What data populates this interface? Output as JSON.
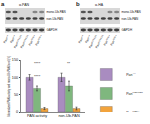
{
  "blots": [
    {
      "label": "a",
      "antibody": "α-PAN",
      "bands": [
        "mono-Ub-PAN",
        "non-Ub-PAN"
      ],
      "loading": "GAPDH",
      "lanes": [
        {
          "base": "Pan",
          "sup": "+/+"
        },
        {
          "base": "Pan",
          "sup": "K2R/K2R"
        },
        {
          "base": "Pan",
          "sup": "K2R/+"
        }
      ]
    },
    {
      "label": "b",
      "antibody": "α-HA",
      "bands": [
        "mono-Ub-PAN",
        "non-Ub-PAN"
      ],
      "loading": "GAPDH",
      "lanes": [
        {
          "base": "Pan",
          "sup": "+/+"
        },
        {
          "base": "Pan",
          "sup": "K2R/K2R"
        },
        {
          "base": "Pan",
          "sup": "K2R/+"
        }
      ]
    }
  ],
  "panel_label": "c",
  "chart_data": {
    "type": "bar",
    "ylabel": "Normalized PAN activity and mono-Ub-PAN level (%)",
    "categories": [
      "PAN activity",
      "non-Ub-PAN"
    ],
    "series": [
      {
        "name": {
          "base": "Pan",
          "sup": "+/+"
        },
        "color": "#a98cc0",
        "values": [
          100,
          100
        ],
        "errors": [
          8,
          12
        ]
      },
      {
        "name": {
          "base": "Pan",
          "sup": "K2R/K2R"
        },
        "color": "#7fb77e",
        "values": [
          68,
          75
        ],
        "errors": [
          7,
          14
        ]
      },
      {
        "name": {
          "base": "Pan",
          "sup": "K2R/+"
        },
        "color": "#f2a33c",
        "values": [
          10,
          10
        ],
        "errors": [
          3,
          4
        ]
      }
    ],
    "annotations": [
      {
        "text": "****",
        "x": "PAN activity",
        "y": 128
      },
      {
        "text": "****",
        "x": "PAN activity",
        "y": 90
      },
      {
        "text": "**",
        "x": "non-Ub-PAN",
        "y": 128
      }
    ],
    "ylim": [
      0,
      150
    ],
    "yticks": [
      0,
      50,
      100,
      150
    ],
    "legend": "right",
    "grid": false
  }
}
